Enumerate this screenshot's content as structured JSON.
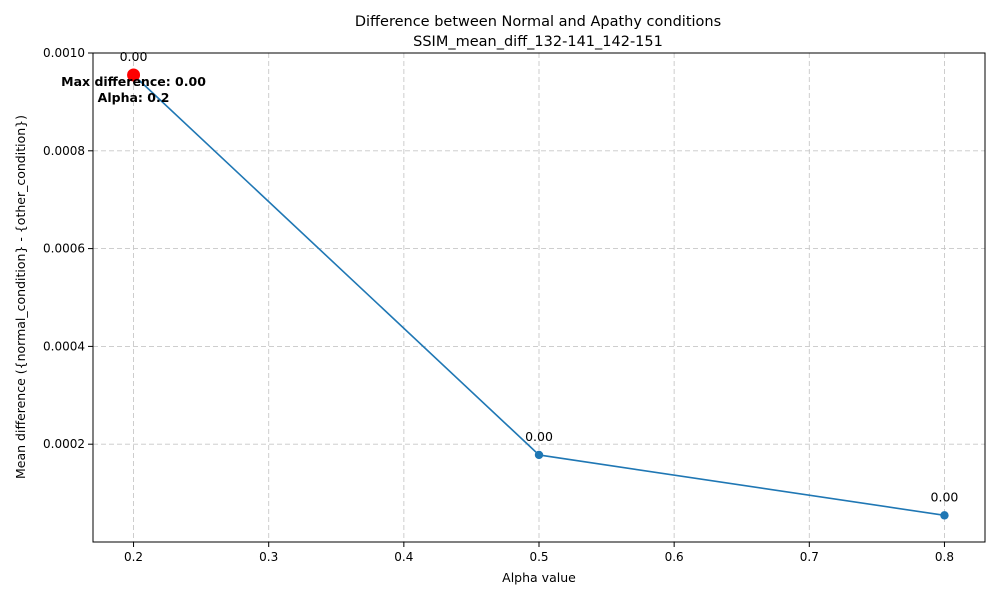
{
  "chart_data": {
    "type": "line",
    "title": "Difference between Normal and Apathy conditions",
    "subtitle": "SSIM_mean_diff_132-141_142-151",
    "xlabel": "Alpha value",
    "ylabel": "Mean difference ({normal_condition} - {other_condition})",
    "xlim": [
      0.17,
      0.83
    ],
    "ylim": [
      0.0,
      0.001
    ],
    "x_ticks": [
      0.2,
      0.3,
      0.4,
      0.5,
      0.6,
      0.7,
      0.8
    ],
    "x_tick_labels": [
      "0.2",
      "0.3",
      "0.4",
      "0.5",
      "0.6",
      "0.7",
      "0.8"
    ],
    "y_ticks": [
      0.0002,
      0.0004,
      0.0006,
      0.0008,
      0.001
    ],
    "y_tick_labels": [
      "0.0002",
      "0.0004",
      "0.0006",
      "0.0008",
      "0.0010"
    ],
    "grid": true,
    "series": [
      {
        "x": [
          0.2,
          0.5,
          0.8
        ],
        "y": [
          0.000955,
          0.000178,
          5.45e-05
        ],
        "point_labels": [
          "0.00",
          "0.00",
          "0.00"
        ],
        "color": "#1f77b4"
      }
    ],
    "highlight": {
      "x": 0.2,
      "y": 0.000955,
      "color": "#ff0000",
      "annotation_lines": [
        "Max difference: 0.00",
        "Alpha: 0.2"
      ]
    }
  }
}
